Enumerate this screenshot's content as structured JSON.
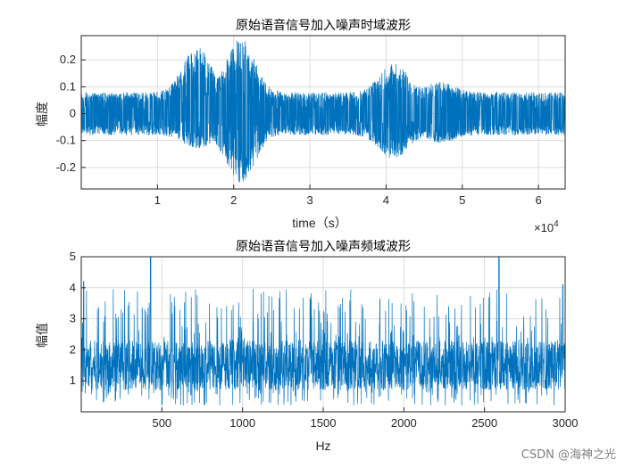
{
  "colors": {
    "series": "#0072BD",
    "axis": "#262626",
    "grid": "#dcdcdc",
    "watermark": "#7f7f7f"
  },
  "watermark": "CSDN @海神之光",
  "chart_data": [
    {
      "type": "line",
      "title": "原始语音信号加入噪声时域波形",
      "xlabel": "time（s）",
      "ylabel": "幅度",
      "xlim": [
        0,
        63500
      ],
      "ylim": [
        -0.28,
        0.29
      ],
      "x_ticks": [
        10000,
        20000,
        30000,
        40000,
        50000,
        60000
      ],
      "x_tick_labels": [
        "1",
        "2",
        "3",
        "4",
        "5",
        "6"
      ],
      "x_exponent": {
        "base": "×10",
        "power": "4"
      },
      "y_ticks": [
        -0.2,
        -0.1,
        0,
        0.1,
        0.2
      ],
      "y_tick_labels": [
        "-0.2",
        "-0.1",
        "0",
        "0.1",
        "0.2"
      ],
      "grid": true,
      "series": [
        {
          "description_points": [
            [
              0,
              0.1
            ],
            [
              15000,
              0.25
            ],
            [
              16500,
              0.22
            ],
            [
              20500,
              0.28
            ],
            [
              21500,
              0.26
            ],
            [
              40000,
              0.13
            ],
            [
              41500,
              0.12
            ],
            [
              47000,
              0.12
            ],
            [
              63500,
              0.1
            ]
          ],
          "noise_amplitude": 0.08,
          "peaks": [
            {
              "x": 15200,
              "max": 0.25,
              "min": -0.13
            },
            {
              "x": 20900,
              "max": 0.28,
              "min": -0.26
            },
            {
              "x": 41000,
              "max": 0.19,
              "min": -0.17
            },
            {
              "x": 47000,
              "max": 0.12,
              "min": -0.11
            }
          ]
        }
      ]
    },
    {
      "type": "line",
      "title": "原始语音信号加入噪声频域波形",
      "xlabel": "Hz",
      "ylabel": "幅值",
      "xlim": [
        0,
        3000
      ],
      "ylim": [
        0,
        5
      ],
      "x_ticks": [
        500,
        1000,
        1500,
        2000,
        2500,
        3000
      ],
      "x_tick_labels": [
        "500",
        "1000",
        "1500",
        "2000",
        "2500",
        "3000"
      ],
      "y_ticks": [
        1,
        2,
        3,
        4,
        5
      ],
      "y_tick_labels": [
        "1",
        "2",
        "3",
        "4",
        "5"
      ],
      "grid": true,
      "series": [
        {
          "mean": 1.5,
          "min": 0.2,
          "max": 5.0,
          "spikes": [
            [
              430,
              5.0
            ],
            [
              2590,
              5.0
            ],
            [
              15,
              4.2
            ],
            [
              2985,
              4.1
            ]
          ]
        }
      ]
    }
  ]
}
